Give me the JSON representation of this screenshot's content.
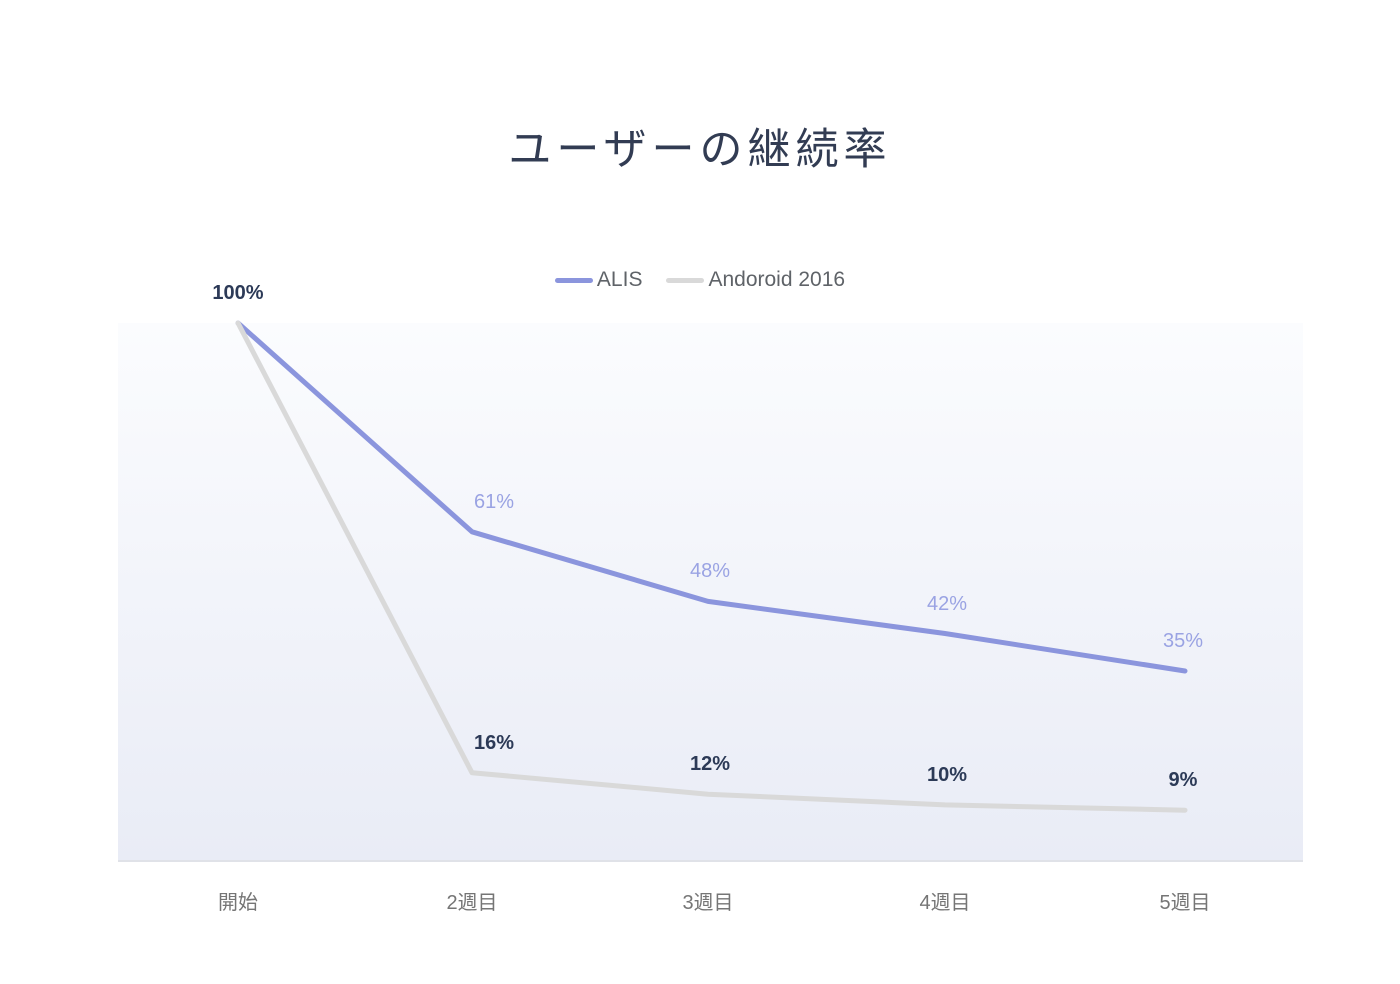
{
  "title": "ユーザーの継続率",
  "legend": {
    "items": [
      {
        "label": "ALIS",
        "color": "#8b95dd"
      },
      {
        "label": "Andoroid 2016",
        "color": "#d9d9d9"
      }
    ]
  },
  "colors": {
    "alis_line": "#8b95dd",
    "android_line": "#d9d9d9",
    "alis_label": "#9aa3e3",
    "dark_label": "#2c3a57",
    "title_text": "#323c53",
    "axis_text": "#757575",
    "plot_bg_bottom": "#e9ecf6"
  },
  "chart_data": {
    "type": "line",
    "title": "ユーザーの継続率",
    "categories": [
      "開始",
      "2週目",
      "3週目",
      "4週目",
      "5週目"
    ],
    "series": [
      {
        "name": "ALIS",
        "color": "#8b95dd",
        "values": [
          100,
          61,
          48,
          42,
          35
        ],
        "point_labels": [
          "",
          "61%",
          "48%",
          "42%",
          "35%"
        ],
        "label_color": "#9aa3e3"
      },
      {
        "name": "Andoroid 2016",
        "color": "#d9d9d9",
        "values": [
          100,
          16,
          12,
          10,
          9
        ],
        "point_labels": [
          "100%",
          "16%",
          "12%",
          "10%",
          "9%"
        ],
        "label_color": "#2c3a57"
      }
    ],
    "xlabel": "",
    "ylabel": "",
    "ylim": [
      0,
      100
    ],
    "grid": false,
    "legend_position": "top-center",
    "y_axis_ticks_visible": false
  }
}
